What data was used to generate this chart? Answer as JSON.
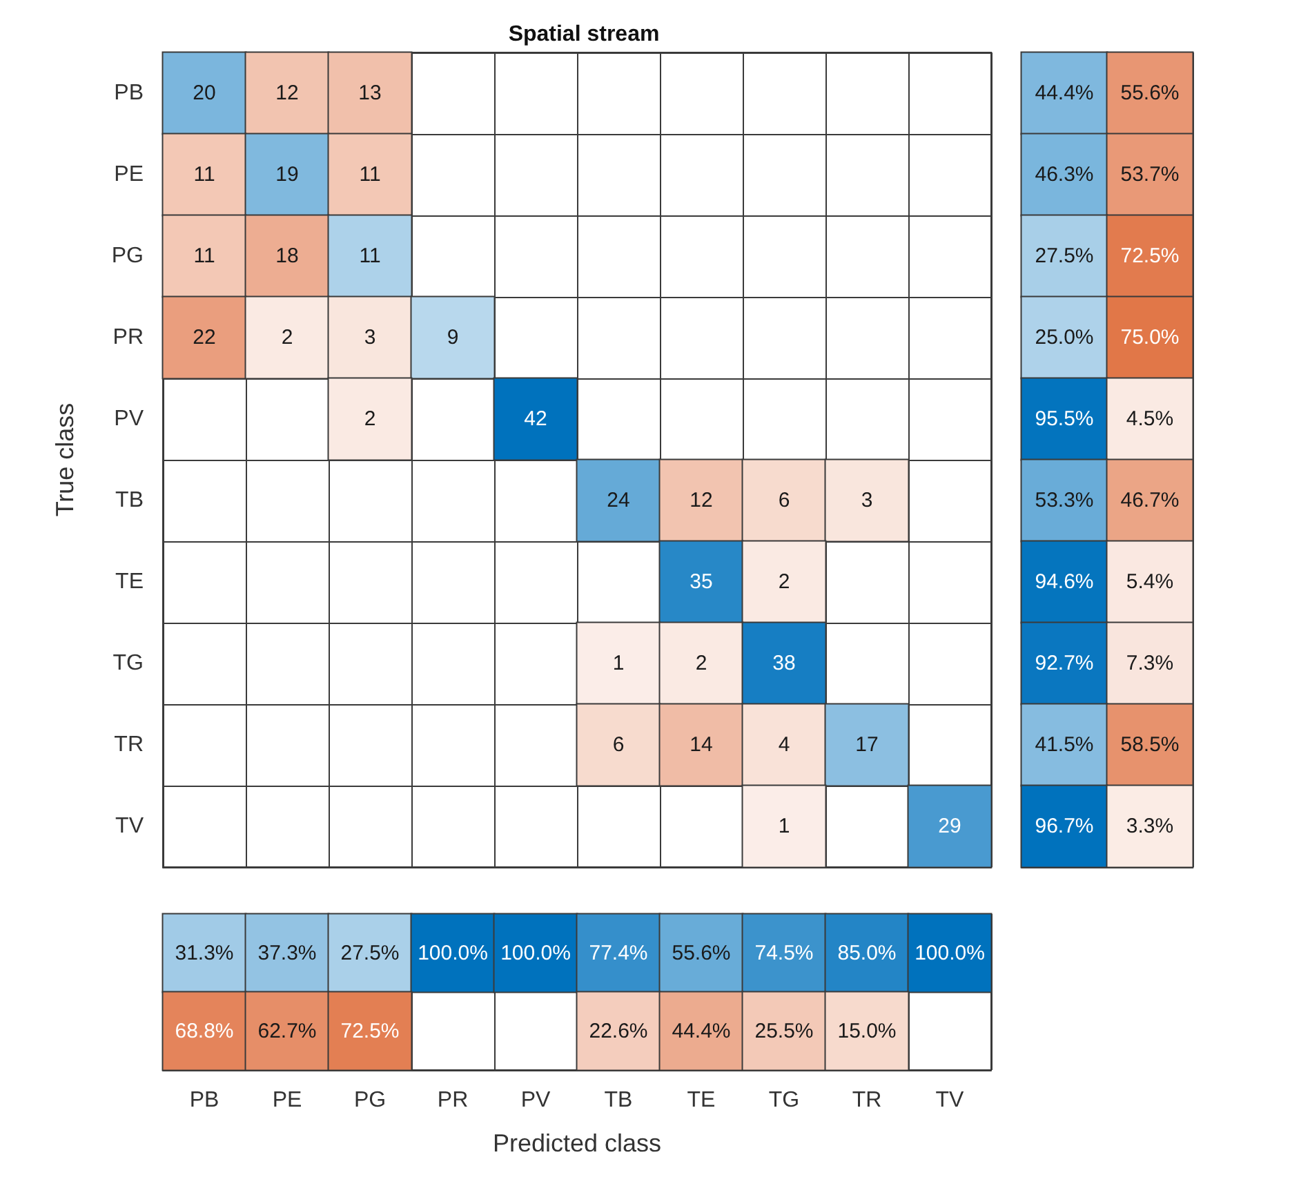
{
  "chart_data": [
    {
      "type": "heatmap",
      "title": "Spatial stream",
      "ylabel": "True class",
      "categories": [
        null,
        null,
        null,
        null,
        null,
        null,
        null,
        null,
        null,
        null
      ],
      "y_categories": [
        "PB",
        "PE",
        "PG",
        "PR",
        "PV",
        "TB",
        "TE",
        "TG",
        "TR",
        "TV"
      ],
      "tick_labels": "y",
      "data_labels": true,
      "cells": [
        [
          20,
          12,
          13,
          null,
          null,
          null,
          null,
          null,
          null,
          null
        ],
        [
          11,
          19,
          11,
          null,
          null,
          null,
          null,
          null,
          null,
          null
        ],
        [
          11,
          18,
          11,
          null,
          null,
          null,
          null,
          null,
          null,
          null
        ],
        [
          22,
          2,
          3,
          9,
          null,
          null,
          null,
          null,
          null,
          null
        ],
        [
          null,
          null,
          2,
          null,
          42,
          null,
          null,
          null,
          null,
          null
        ],
        [
          null,
          null,
          null,
          null,
          null,
          24,
          12,
          6,
          3,
          null
        ],
        [
          null,
          null,
          null,
          null,
          null,
          null,
          35,
          2,
          null,
          null
        ],
        [
          null,
          null,
          null,
          null,
          null,
          1,
          2,
          38,
          null,
          null
        ],
        [
          null,
          null,
          null,
          null,
          null,
          6,
          14,
          4,
          17,
          null
        ],
        [
          null,
          null,
          null,
          null,
          null,
          null,
          null,
          1,
          null,
          29
        ]
      ]
    },
    {
      "type": "heatmap",
      "categories": [
        null,
        null
      ],
      "y_categories": [
        null,
        null,
        null,
        null,
        null,
        null,
        null,
        null,
        null,
        null
      ],
      "tick_labels": false,
      "cells": [
        [
          44.4,
          55.6
        ],
        [
          46.3,
          53.7
        ],
        [
          27.5,
          72.5
        ],
        [
          25.0,
          75.0
        ],
        [
          95.5,
          4.5
        ],
        [
          53.3,
          46.7
        ],
        [
          94.6,
          5.4
        ],
        [
          92.7,
          7.3
        ],
        [
          41.5,
          58.5
        ],
        [
          96.7,
          3.3
        ]
      ],
      "cell_labels": [
        [
          "44.4%",
          "55.6%"
        ],
        [
          "46.3%",
          "53.7%"
        ],
        [
          "27.5%",
          "72.5%"
        ],
        [
          "25.0%",
          "75.0%"
        ],
        [
          "95.5%",
          "4.5%"
        ],
        [
          "53.3%",
          "46.7%"
        ],
        [
          "94.6%",
          "5.4%"
        ],
        [
          "92.7%",
          "7.3%"
        ],
        [
          "41.5%",
          "58.5%"
        ],
        [
          "96.7%",
          "3.3%"
        ]
      ]
    },
    {
      "type": "heatmap",
      "xlabel": "Predicted class",
      "categories": [
        "PB",
        "PE",
        "PG",
        "PR",
        "PV",
        "TB",
        "TE",
        "TG",
        "TR",
        "TV"
      ],
      "y_categories": [
        null,
        null
      ],
      "tick_labels": "x",
      "cells": [
        [
          31.3,
          37.3,
          27.5,
          100.0,
          100.0,
          77.4,
          55.6,
          74.5,
          85.0,
          100.0
        ],
        [
          68.8,
          62.7,
          72.5,
          null,
          null,
          22.6,
          44.4,
          25.5,
          15.0,
          null
        ]
      ],
      "cell_labels": [
        [
          "31.3%",
          "37.3%",
          "27.5%",
          "100.0%",
          "100.0%",
          "77.4%",
          "55.6%",
          "74.5%",
          "85.0%",
          "100.0%"
        ],
        [
          "68.8%",
          "62.7%",
          "72.5%",
          null,
          null,
          "22.6%",
          "44.4%",
          "25.5%",
          "15.0%",
          null
        ]
      ]
    }
  ]
}
